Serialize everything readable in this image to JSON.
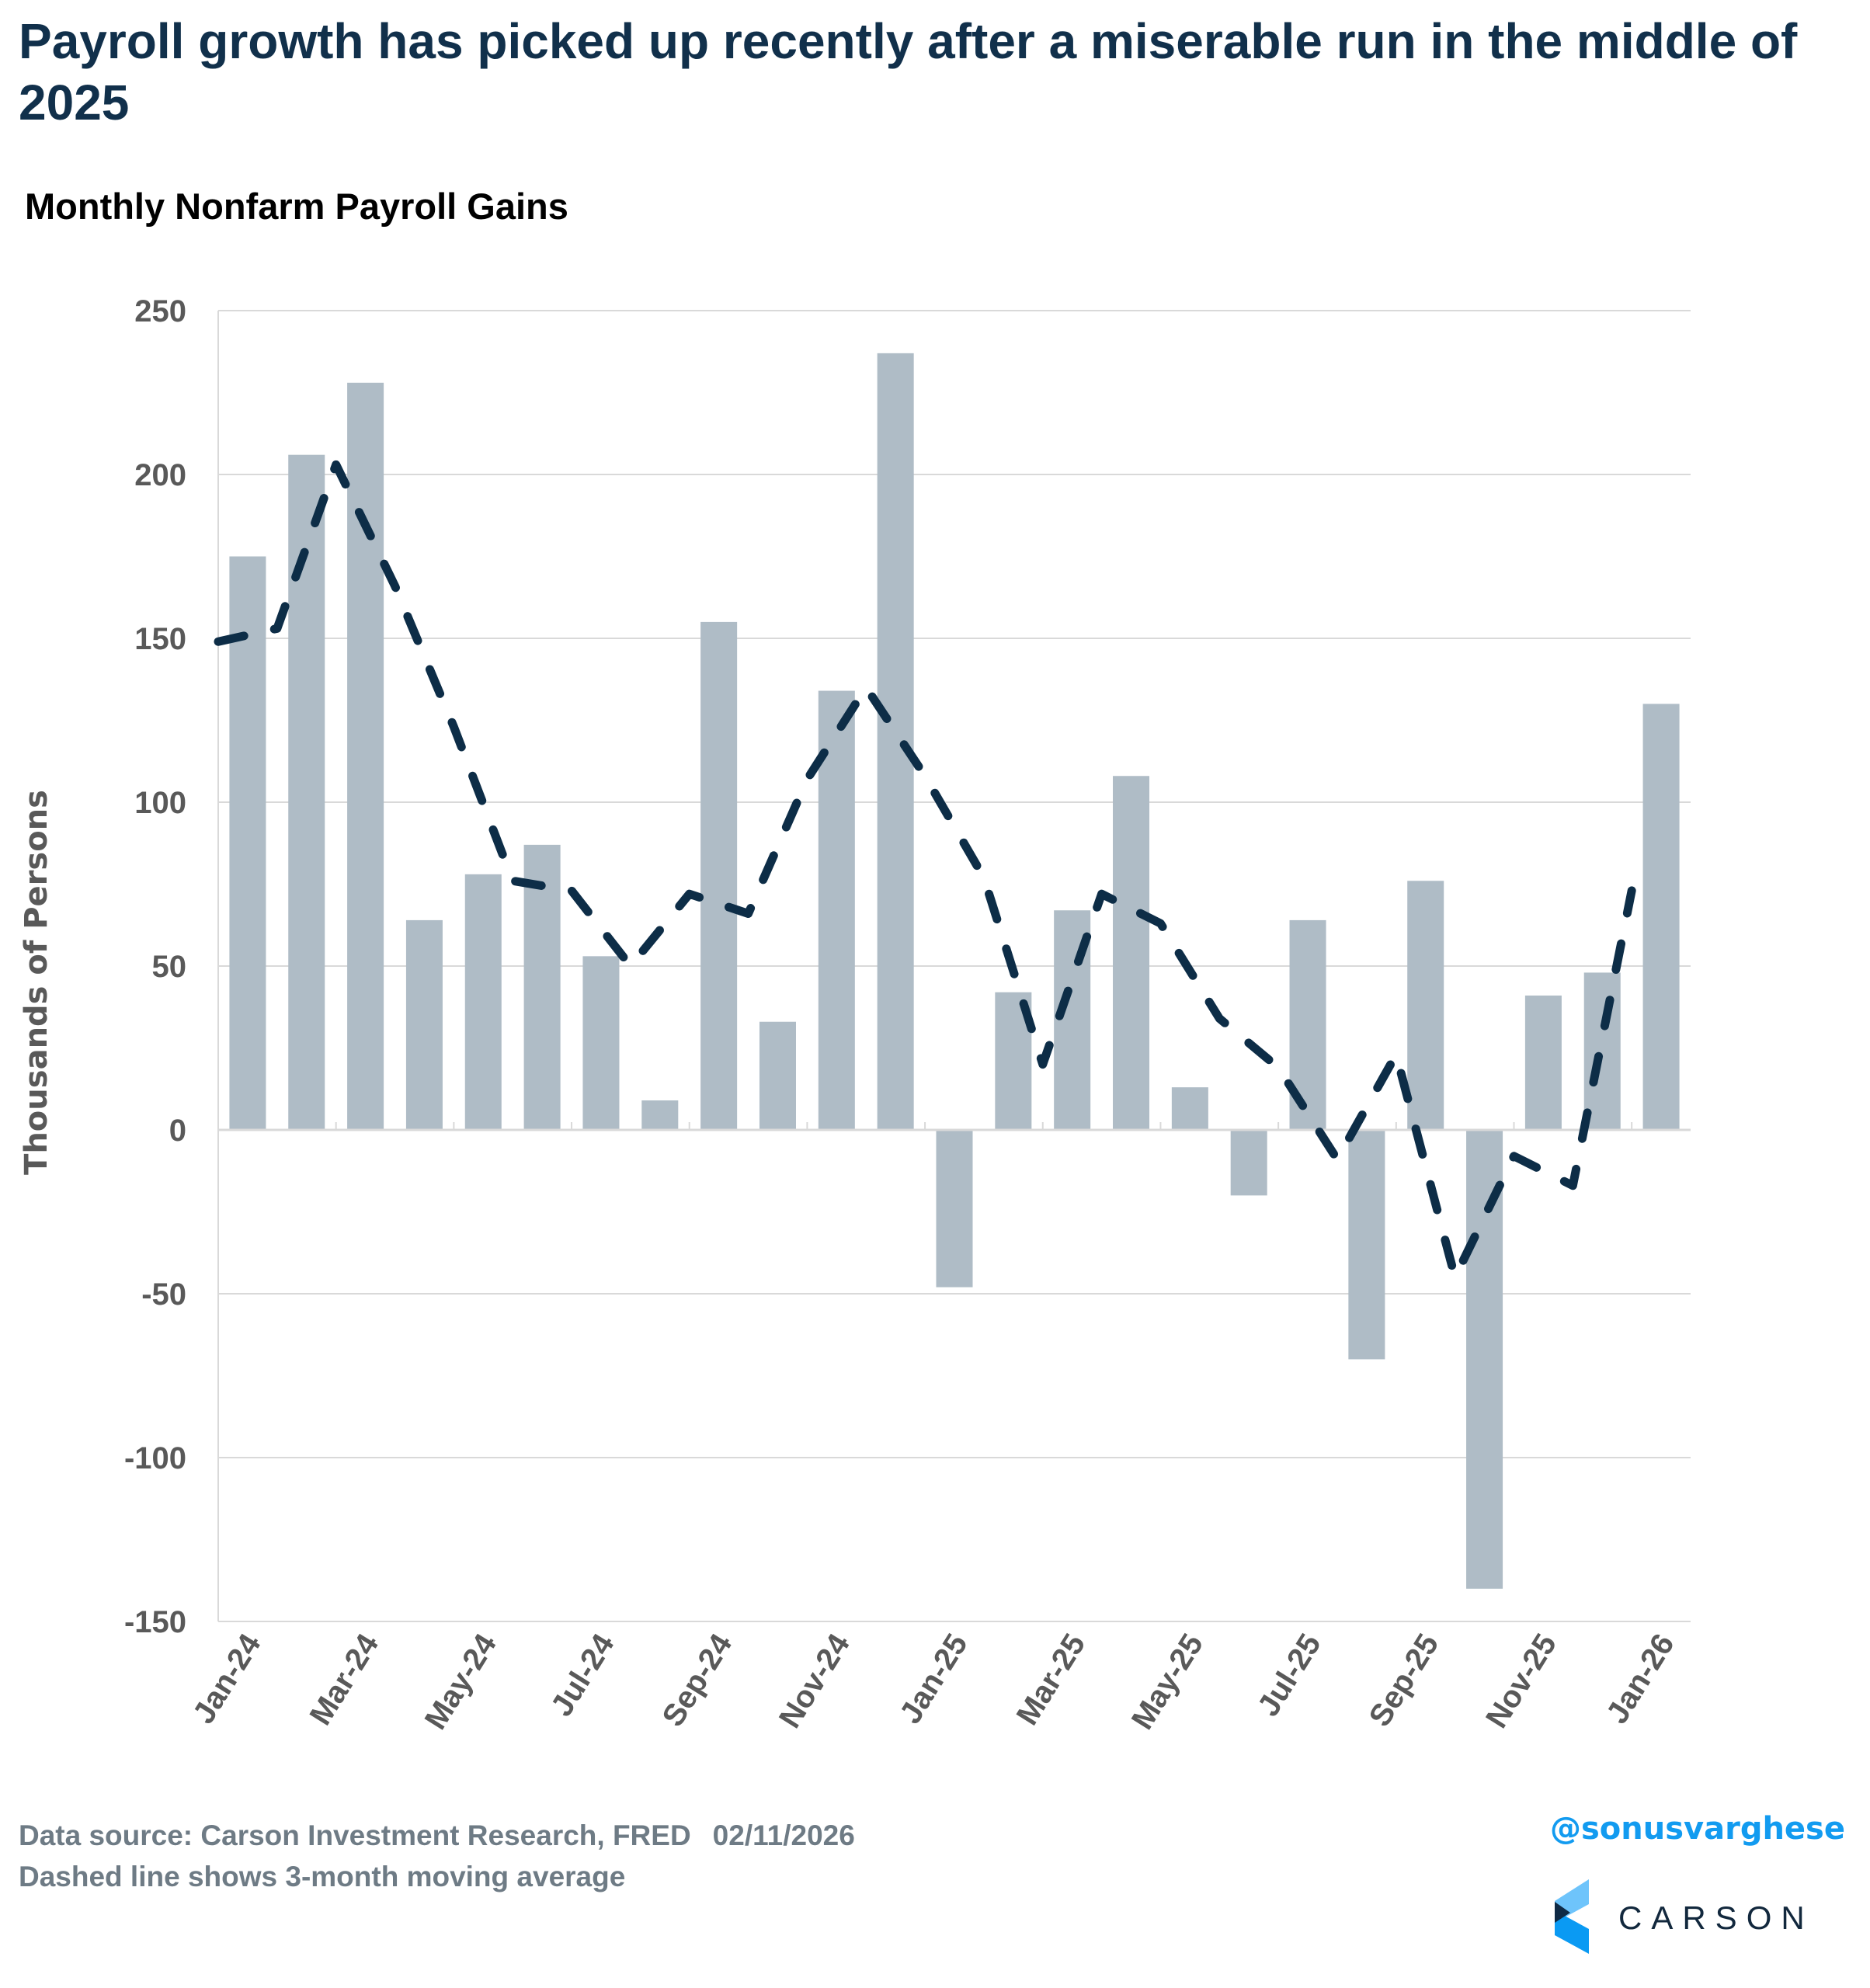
{
  "header": {
    "title": "Payroll growth has picked up recently after a miserable run in the middle of 2025",
    "subtitle": "Monthly Nonfarm Payroll Gains"
  },
  "footer": {
    "source": "Data source: Carson Investment Research, FRED",
    "date": "02/11/2026",
    "note": "Dashed line shows 3-month moving average",
    "handle": "@sonusvarghese",
    "logo_text": "CARSON",
    "logo_icon": "carson-chevron-logo-icon"
  },
  "colors": {
    "bar": "#AFBCC6",
    "line": "#0D2D47",
    "title": "#11304B",
    "grid": "#D9D9D9",
    "handle": "#129BF0"
  },
  "chart_data": {
    "type": "bar",
    "title": "Monthly Nonfarm Payroll Gains",
    "xlabel": "",
    "ylabel": "Thousands of Persons",
    "ylim": [
      -150,
      250
    ],
    "yticks": [
      250,
      200,
      150,
      100,
      50,
      0,
      -50,
      -100,
      -150
    ],
    "grid": true,
    "categories": [
      "Jan-24",
      "Feb-24",
      "Mar-24",
      "Apr-24",
      "May-24",
      "Jun-24",
      "Jul-24",
      "Aug-24",
      "Sep-24",
      "Oct-24",
      "Nov-24",
      "Dec-24",
      "Jan-25",
      "Feb-25",
      "Mar-25",
      "Apr-25",
      "May-25",
      "Jun-25",
      "Jul-25",
      "Aug-25",
      "Sep-25",
      "Oct-25",
      "Nov-25",
      "Dec-25",
      "Jan-26"
    ],
    "xtick_labels": [
      "Jan-24",
      "Mar-24",
      "May-24",
      "Jul-24",
      "Sep-24",
      "Nov-24",
      "Jan-25",
      "Mar-25",
      "May-25",
      "Jul-25",
      "Sep-25",
      "Nov-25",
      "Jan-26"
    ],
    "series": [
      {
        "name": "Monthly Nonfarm Payroll Gains",
        "type": "bar",
        "values": [
          175,
          206,
          228,
          64,
          78,
          87,
          53,
          9,
          155,
          33,
          134,
          237,
          -48,
          42,
          67,
          108,
          13,
          -20,
          64,
          -70,
          76,
          -140,
          41,
          48,
          130
        ]
      },
      {
        "name": "3-month moving average",
        "type": "line",
        "style": "dashed",
        "values": [
          149,
          153,
          203,
          166,
          123,
          76,
          73,
          50,
          72,
          66,
          107,
          135,
          108,
          77,
          20,
          72,
          63,
          34,
          19,
          -9,
          23,
          -45,
          -8,
          -17,
          73
        ]
      }
    ]
  }
}
